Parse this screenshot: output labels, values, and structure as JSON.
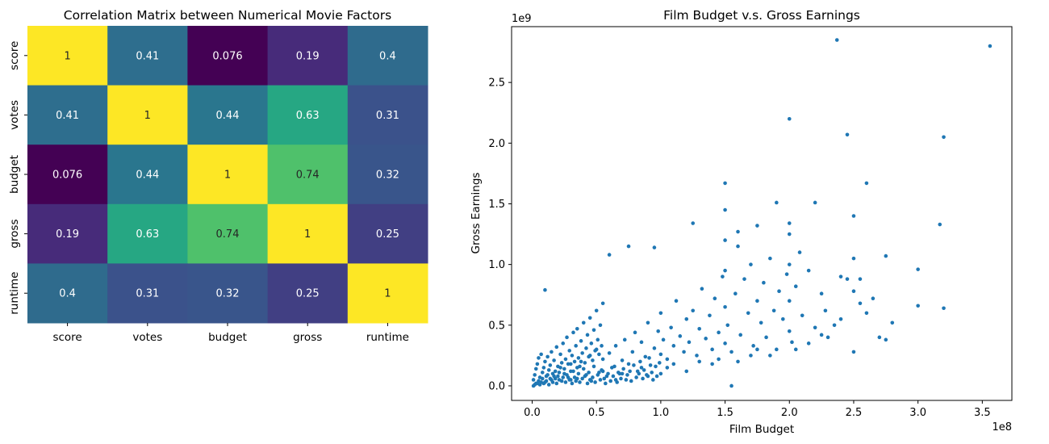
{
  "chart_data": [
    {
      "type": "heatmap",
      "title": "Correlation Matrix between Numerical Movie Factors",
      "rows": [
        "score",
        "votes",
        "budget",
        "gross",
        "runtime"
      ],
      "columns": [
        "score",
        "votes",
        "budget",
        "gross",
        "runtime"
      ],
      "values": [
        [
          1,
          0.41,
          0.076,
          0.19,
          0.4
        ],
        [
          0.41,
          1,
          0.44,
          0.63,
          0.31
        ],
        [
          0.076,
          0.44,
          1,
          0.74,
          0.32
        ],
        [
          0.19,
          0.63,
          0.74,
          1,
          0.25
        ],
        [
          0.4,
          0.31,
          0.32,
          0.25,
          1
        ]
      ],
      "labels": [
        [
          "1",
          "0.41",
          "0.076",
          "0.19",
          "0.4"
        ],
        [
          "0.41",
          "1",
          "0.44",
          "0.63",
          "0.31"
        ],
        [
          "0.076",
          "0.44",
          "1",
          "0.74",
          "0.32"
        ],
        [
          "0.19",
          "0.63",
          "0.74",
          "1",
          "0.25"
        ],
        [
          "0.4",
          "0.31",
          "0.32",
          "0.25",
          "1"
        ]
      ],
      "colormap": "viridis",
      "colorbar": false
    },
    {
      "type": "scatter",
      "title": "Film Budget v.s. Gross Earnings",
      "xlabel": "Film Budget",
      "ylabel": "Gross Earnings",
      "x_offset_label": "1e8",
      "y_offset_label": "1e9",
      "xlim": [
        -0.16,
        3.73
      ],
      "ylim": [
        -0.12,
        2.96
      ],
      "x_ticks": [
        "0.0",
        "0.5",
        "1.0",
        "1.5",
        "2.0",
        "2.5",
        "3.0",
        "3.5"
      ],
      "y_ticks": [
        "0.0",
        "0.5",
        "1.0",
        "1.5",
        "2.0",
        "2.5"
      ],
      "marker_color": "#1f77b4",
      "grid": false,
      "points": [
        [
          0.02,
          0.01
        ],
        [
          0.03,
          0.02
        ],
        [
          0.01,
          0.0
        ],
        [
          0.05,
          0.04
        ],
        [
          0.08,
          0.06
        ],
        [
          0.1,
          0.03
        ],
        [
          0.12,
          0.09
        ],
        [
          0.15,
          0.05
        ],
        [
          0.18,
          0.12
        ],
        [
          0.2,
          0.08
        ],
        [
          0.22,
          0.15
        ],
        [
          0.25,
          0.1
        ],
        [
          0.28,
          0.07
        ],
        [
          0.3,
          0.18
        ],
        [
          0.32,
          0.12
        ],
        [
          0.35,
          0.06
        ],
        [
          0.38,
          0.2
        ],
        [
          0.4,
          0.14
        ],
        [
          0.42,
          0.09
        ],
        [
          0.45,
          0.25
        ],
        [
          0.48,
          0.16
        ],
        [
          0.5,
          0.3
        ],
        [
          0.52,
          0.11
        ],
        [
          0.55,
          0.22
        ],
        [
          0.58,
          0.08
        ],
        [
          0.6,
          0.27
        ],
        [
          0.62,
          0.15
        ],
        [
          0.65,
          0.33
        ],
        [
          0.68,
          0.1
        ],
        [
          0.7,
          0.21
        ],
        [
          0.72,
          0.38
        ],
        [
          0.75,
          0.18
        ],
        [
          0.78,
          0.28
        ],
        [
          0.8,
          0.44
        ],
        [
          0.82,
          0.12
        ],
        [
          0.85,
          0.36
        ],
        [
          0.88,
          0.24
        ],
        [
          0.9,
          0.52
        ],
        [
          0.92,
          0.17
        ],
        [
          0.95,
          0.31
        ],
        [
          0.98,
          0.45
        ],
        [
          1.0,
          0.26
        ],
        [
          1.0,
          0.6
        ],
        [
          1.02,
          0.38
        ],
        [
          1.05,
          0.22
        ],
        [
          1.08,
          0.48
        ],
        [
          1.1,
          0.33
        ],
        [
          1.12,
          0.7
        ],
        [
          1.15,
          0.41
        ],
        [
          1.18,
          0.28
        ],
        [
          1.2,
          0.55
        ],
        [
          1.22,
          0.36
        ],
        [
          1.25,
          0.62
        ],
        [
          1.28,
          0.25
        ],
        [
          1.3,
          0.47
        ],
        [
          1.32,
          0.8
        ],
        [
          1.35,
          0.39
        ],
        [
          1.38,
          0.58
        ],
        [
          1.4,
          0.3
        ],
        [
          1.42,
          0.72
        ],
        [
          1.45,
          0.44
        ],
        [
          1.48,
          0.9
        ],
        [
          1.5,
          0.35
        ],
        [
          1.5,
          0.65
        ],
        [
          1.5,
          0.95
        ],
        [
          1.5,
          1.2
        ],
        [
          1.52,
          0.5
        ],
        [
          1.55,
          0.28
        ],
        [
          1.58,
          0.76
        ],
        [
          1.6,
          1.15
        ],
        [
          1.62,
          0.42
        ],
        [
          1.65,
          0.88
        ],
        [
          1.68,
          0.6
        ],
        [
          1.7,
          1.0
        ],
        [
          1.72,
          0.33
        ],
        [
          1.75,
          0.7
        ],
        [
          1.78,
          0.52
        ],
        [
          1.8,
          0.85
        ],
        [
          1.82,
          0.4
        ],
        [
          1.85,
          1.05
        ],
        [
          1.88,
          0.62
        ],
        [
          1.9,
          0.3
        ],
        [
          1.92,
          0.78
        ],
        [
          1.95,
          0.55
        ],
        [
          1.98,
          0.92
        ],
        [
          2.0,
          0.45
        ],
        [
          2.0,
          0.7
        ],
        [
          2.0,
          1.0
        ],
        [
          2.0,
          1.25
        ],
        [
          2.02,
          0.36
        ],
        [
          2.05,
          0.82
        ],
        [
          2.08,
          1.1
        ],
        [
          2.1,
          0.58
        ],
        [
          2.15,
          0.95
        ],
        [
          2.2,
          0.48
        ],
        [
          2.25,
          0.76
        ],
        [
          2.28,
          0.62
        ],
        [
          2.3,
          0.4
        ],
        [
          2.4,
          0.9
        ],
        [
          2.45,
          0.88
        ],
        [
          2.5,
          1.05
        ],
        [
          2.5,
          0.78
        ],
        [
          2.55,
          0.68
        ],
        [
          2.6,
          0.6
        ],
        [
          2.7,
          0.4
        ],
        [
          2.75,
          1.07
        ],
        [
          2.8,
          0.52
        ],
        [
          3.0,
          0.96
        ],
        [
          3.0,
          0.66
        ],
        [
          3.2,
          0.64
        ],
        [
          0.1,
          0.79
        ],
        [
          0.6,
          1.08
        ],
        [
          0.75,
          1.15
        ],
        [
          0.95,
          1.14
        ],
        [
          1.25,
          1.34
        ],
        [
          1.5,
          1.67
        ],
        [
          1.5,
          1.45
        ],
        [
          1.6,
          1.27
        ],
        [
          1.75,
          1.32
        ],
        [
          1.9,
          1.51
        ],
        [
          2.0,
          2.2
        ],
        [
          2.0,
          1.34
        ],
        [
          2.2,
          1.51
        ],
        [
          2.37,
          2.85
        ],
        [
          2.45,
          2.07
        ],
        [
          2.5,
          1.4
        ],
        [
          2.6,
          1.67
        ],
        [
          3.2,
          2.05
        ],
        [
          3.17,
          1.33
        ],
        [
          3.56,
          2.8
        ],
        [
          2.5,
          0.28
        ],
        [
          1.55,
          0.0
        ],
        [
          0.3,
          0.05
        ],
        [
          0.35,
          0.15
        ],
        [
          0.45,
          0.05
        ],
        [
          0.55,
          0.12
        ],
        [
          0.65,
          0.05
        ],
        [
          0.7,
          0.1
        ],
        [
          0.85,
          0.15
        ],
        [
          0.9,
          0.08
        ],
        [
          1.0,
          0.1
        ],
        [
          1.05,
          0.15
        ],
        [
          1.1,
          0.18
        ],
        [
          1.2,
          0.12
        ],
        [
          1.3,
          0.2
        ],
        [
          1.4,
          0.18
        ],
        [
          1.45,
          0.22
        ],
        [
          1.6,
          0.2
        ],
        [
          1.7,
          0.25
        ],
        [
          1.75,
          0.3
        ],
        [
          1.85,
          0.25
        ],
        [
          2.05,
          0.3
        ],
        [
          2.15,
          0.35
        ],
        [
          2.25,
          0.42
        ],
        [
          2.35,
          0.5
        ],
        [
          2.4,
          0.55
        ],
        [
          2.55,
          0.88
        ],
        [
          2.65,
          0.72
        ],
        [
          2.75,
          0.38
        ],
        [
          0.04,
          0.02
        ],
        [
          0.06,
          0.01
        ],
        [
          0.07,
          0.03
        ],
        [
          0.09,
          0.02
        ],
        [
          0.11,
          0.04
        ],
        [
          0.13,
          0.01
        ],
        [
          0.14,
          0.06
        ],
        [
          0.16,
          0.03
        ],
        [
          0.17,
          0.08
        ],
        [
          0.19,
          0.02
        ],
        [
          0.21,
          0.05
        ],
        [
          0.23,
          0.04
        ],
        [
          0.24,
          0.07
        ],
        [
          0.26,
          0.03
        ],
        [
          0.27,
          0.09
        ],
        [
          0.29,
          0.05
        ],
        [
          0.31,
          0.02
        ],
        [
          0.33,
          0.07
        ],
        [
          0.34,
          0.04
        ],
        [
          0.36,
          0.1
        ],
        [
          0.37,
          0.03
        ],
        [
          0.39,
          0.06
        ],
        [
          0.41,
          0.08
        ],
        [
          0.43,
          0.02
        ],
        [
          0.44,
          0.11
        ],
        [
          0.46,
          0.04
        ],
        [
          0.47,
          0.07
        ],
        [
          0.49,
          0.03
        ],
        [
          0.51,
          0.09
        ],
        [
          0.53,
          0.05
        ],
        [
          0.54,
          0.13
        ],
        [
          0.56,
          0.06
        ],
        [
          0.57,
          0.02
        ],
        [
          0.59,
          0.1
        ],
        [
          0.61,
          0.04
        ],
        [
          0.63,
          0.08
        ],
        [
          0.64,
          0.16
        ],
        [
          0.66,
          0.03
        ],
        [
          0.67,
          0.11
        ],
        [
          0.69,
          0.06
        ],
        [
          0.71,
          0.14
        ],
        [
          0.73,
          0.05
        ],
        [
          0.74,
          0.09
        ],
        [
          0.76,
          0.12
        ],
        [
          0.77,
          0.04
        ],
        [
          0.79,
          0.17
        ],
        [
          0.81,
          0.07
        ],
        [
          0.83,
          0.1
        ],
        [
          0.84,
          0.2
        ],
        [
          0.86,
          0.06
        ],
        [
          0.87,
          0.13
        ],
        [
          0.89,
          0.09
        ],
        [
          0.91,
          0.23
        ],
        [
          0.93,
          0.11
        ],
        [
          0.94,
          0.05
        ],
        [
          0.96,
          0.16
        ],
        [
          0.97,
          0.08
        ],
        [
          0.99,
          0.19
        ],
        [
          0.01,
          0.05
        ],
        [
          0.02,
          0.09
        ],
        [
          0.03,
          0.14
        ],
        [
          0.04,
          0.18
        ],
        [
          0.05,
          0.23
        ],
        [
          0.06,
          0.07
        ],
        [
          0.07,
          0.26
        ],
        [
          0.08,
          0.11
        ],
        [
          0.09,
          0.15
        ],
        [
          0.1,
          0.2
        ],
        [
          0.11,
          0.08
        ],
        [
          0.12,
          0.24
        ],
        [
          0.13,
          0.13
        ],
        [
          0.14,
          0.17
        ],
        [
          0.15,
          0.28
        ],
        [
          0.16,
          0.1
        ],
        [
          0.17,
          0.21
        ],
        [
          0.18,
          0.06
        ],
        [
          0.19,
          0.32
        ],
        [
          0.2,
          0.16
        ],
        [
          0.21,
          0.11
        ],
        [
          0.22,
          0.26
        ],
        [
          0.23,
          0.19
        ],
        [
          0.24,
          0.35
        ],
        [
          0.25,
          0.14
        ],
        [
          0.26,
          0.22
        ],
        [
          0.27,
          0.4
        ],
        [
          0.28,
          0.18
        ],
        [
          0.29,
          0.29
        ],
        [
          0.3,
          0.12
        ],
        [
          0.31,
          0.25
        ],
        [
          0.32,
          0.44
        ],
        [
          0.33,
          0.2
        ],
        [
          0.34,
          0.33
        ],
        [
          0.35,
          0.47
        ],
        [
          0.36,
          0.23
        ],
        [
          0.37,
          0.16
        ],
        [
          0.38,
          0.37
        ],
        [
          0.39,
          0.27
        ],
        [
          0.4,
          0.52
        ],
        [
          0.41,
          0.19
        ],
        [
          0.42,
          0.31
        ],
        [
          0.43,
          0.42
        ],
        [
          0.44,
          0.24
        ],
        [
          0.45,
          0.56
        ],
        [
          0.46,
          0.35
        ],
        [
          0.47,
          0.21
        ],
        [
          0.48,
          0.46
        ],
        [
          0.49,
          0.29
        ],
        [
          0.5,
          0.62
        ],
        [
          0.51,
          0.38
        ],
        [
          0.52,
          0.26
        ],
        [
          0.53,
          0.5
        ],
        [
          0.54,
          0.33
        ],
        [
          0.55,
          0.68
        ]
      ]
    }
  ]
}
